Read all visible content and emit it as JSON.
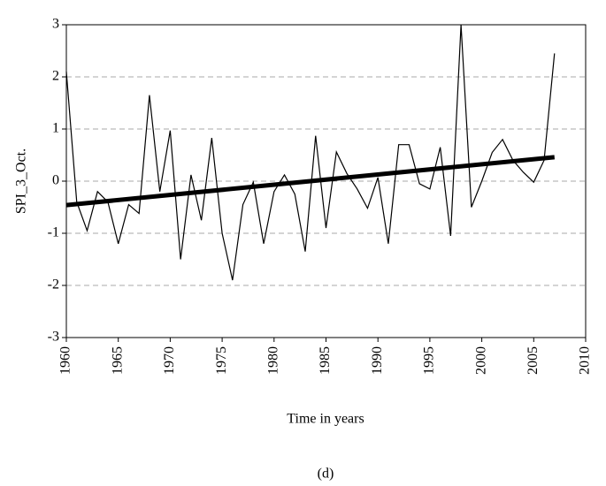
{
  "chart_data": {
    "type": "line",
    "y_label": "SPI_3_Oct.",
    "x_label": "Time in years",
    "caption": "(d)",
    "x": [
      1960,
      1961,
      1962,
      1963,
      1964,
      1965,
      1966,
      1967,
      1968,
      1969,
      1970,
      1971,
      1972,
      1973,
      1974,
      1975,
      1976,
      1977,
      1978,
      1979,
      1980,
      1981,
      1982,
      1983,
      1984,
      1985,
      1986,
      1987,
      1988,
      1989,
      1990,
      1991,
      1992,
      1993,
      1994,
      1995,
      1996,
      1997,
      1998,
      1999,
      2000,
      2001,
      2002,
      2003,
      2004,
      2005,
      2006,
      2007
    ],
    "series": [
      {
        "color": "#000000",
        "width": 1.2,
        "values": [
          2.1,
          -0.4,
          -0.95,
          -0.2,
          -0.4,
          -1.2,
          -0.45,
          -0.62,
          1.65,
          -0.2,
          0.97,
          -1.5,
          0.12,
          -0.75,
          0.83,
          -1.0,
          -1.9,
          -0.45,
          -0.02,
          -1.2,
          -0.2,
          0.12,
          -0.25,
          -1.35,
          0.87,
          -0.9,
          0.56,
          0.15,
          -0.15,
          -0.52,
          0.07,
          -1.2,
          0.7,
          0.7,
          -0.05,
          -0.15,
          0.65,
          -1.05,
          3.0,
          -0.5,
          0.0,
          0.55,
          0.8,
          0.4,
          0.17,
          -0.02,
          0.4,
          2.45
        ]
      },
      {
        "color": "#000000",
        "width": 5,
        "x": [
          1960,
          2007
        ],
        "values": [
          -0.46,
          0.46
        ]
      }
    ],
    "xlim": [
      1960,
      2010
    ],
    "xticks": [
      1960,
      1965,
      1970,
      1975,
      1980,
      1985,
      1990,
      1995,
      2000,
      2005,
      2010
    ],
    "ylim": [
      -3,
      3
    ],
    "yticks": [
      -3,
      -2,
      -1,
      0,
      1,
      2,
      3
    ],
    "grid": true
  }
}
